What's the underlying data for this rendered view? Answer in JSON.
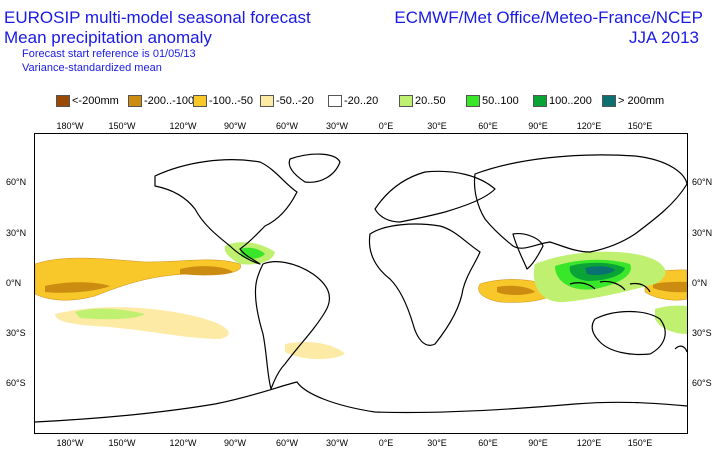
{
  "header": {
    "title_line1": "EUROSIP multi-model seasonal forecast",
    "title_line2": "Mean precipitation anomaly",
    "subtitle_line1": "Forecast start reference is 01/05/13",
    "subtitle_line2": "Variance-standardized mean",
    "organizations": "ECMWF/Met Office/Meteo-France/NCEP",
    "season": "JJA 2013"
  },
  "legend": [
    {
      "label": "<-200mm",
      "color": "#9a4a05"
    },
    {
      "label": "-200..-100",
      "color": "#cc8c12"
    },
    {
      "label": "-100..-50",
      "color": "#f8c82a"
    },
    {
      "label": "-50..-20",
      "color": "#fdeaa5"
    },
    {
      "label": "-20..20",
      "color": "#ffffff"
    },
    {
      "label": "20..50",
      "color": "#c0f070"
    },
    {
      "label": "50..100",
      "color": "#3ae62a"
    },
    {
      "label": "100..200",
      "color": "#0aa336"
    },
    {
      "label": "> 200mm",
      "color": "#0a7070"
    }
  ],
  "axes": {
    "longitudes": [
      "180°W",
      "150°W",
      "120°W",
      "90°W",
      "60°W",
      "30°W",
      "0°E",
      "30°E",
      "60°E",
      "90°E",
      "120°E",
      "150°E"
    ],
    "latitudes": [
      "60°N",
      "30°N",
      "0°N",
      "30°S",
      "60°S"
    ]
  }
}
